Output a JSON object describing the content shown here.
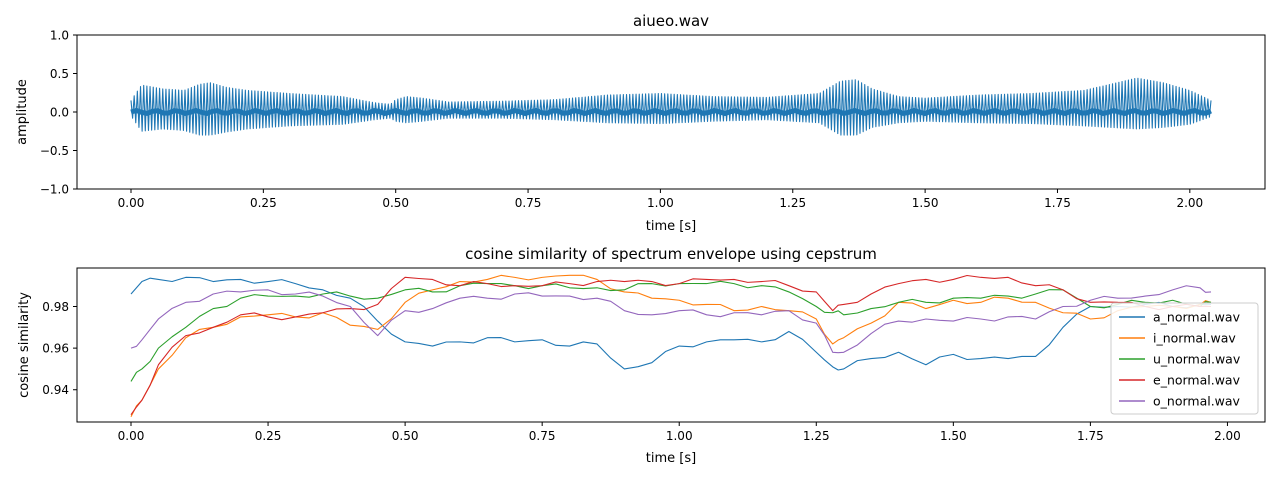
{
  "chart_data": [
    {
      "type": "line",
      "title": "aiueo.wav",
      "xlabel": "time [s]",
      "ylabel": "amplitude",
      "xlim": [
        -0.102,
        2.142
      ],
      "ylim": [
        -1.0,
        1.0
      ],
      "xticks": [
        0.0,
        0.25,
        0.5,
        0.75,
        1.0,
        1.25,
        1.5,
        1.75,
        2.0
      ],
      "xtick_labels": [
        "0.00",
        "0.25",
        "0.50",
        "0.75",
        "1.00",
        "1.25",
        "1.50",
        "1.75",
        "2.00"
      ],
      "yticks": [
        -1.0,
        -0.5,
        0.0,
        0.5,
        1.0
      ],
      "ytick_labels": [
        "−1.0",
        "−0.5",
        "0.0",
        "0.5",
        "1.0"
      ],
      "grid": false,
      "series": [
        {
          "color": "#1f77b4",
          "x_range": [
            0.0,
            2.04
          ],
          "envelope": {
            "t": [
              0.0,
              0.02,
              0.06,
              0.1,
              0.13,
              0.15,
              0.18,
              0.22,
              0.3,
              0.4,
              0.46,
              0.49,
              0.5,
              0.52,
              0.55,
              0.6,
              0.7,
              0.8,
              0.9,
              1.0,
              1.1,
              1.2,
              1.3,
              1.34,
              1.37,
              1.4,
              1.45,
              1.5,
              1.6,
              1.7,
              1.8,
              1.85,
              1.9,
              1.95,
              2.0,
              2.04
            ],
            "upper": [
              0.15,
              0.35,
              0.3,
              0.28,
              0.36,
              0.38,
              0.32,
              0.28,
              0.24,
              0.2,
              0.12,
              0.1,
              0.16,
              0.2,
              0.18,
              0.13,
              0.14,
              0.16,
              0.22,
              0.24,
              0.2,
              0.19,
              0.24,
              0.4,
              0.42,
              0.3,
              0.2,
              0.18,
              0.22,
              0.24,
              0.28,
              0.36,
              0.44,
              0.38,
              0.28,
              0.15
            ],
            "lower": [
              -0.05,
              -0.25,
              -0.22,
              -0.24,
              -0.3,
              -0.3,
              -0.26,
              -0.22,
              -0.18,
              -0.16,
              -0.1,
              -0.08,
              -0.12,
              -0.14,
              -0.12,
              -0.08,
              -0.08,
              -0.1,
              -0.14,
              -0.15,
              -0.12,
              -0.1,
              -0.14,
              -0.3,
              -0.3,
              -0.2,
              -0.14,
              -0.12,
              -0.14,
              -0.15,
              -0.18,
              -0.2,
              -0.22,
              -0.2,
              -0.16,
              -0.06
            ]
          }
        }
      ]
    },
    {
      "type": "line",
      "title": "cosine similarity of spectrum envelope using cepstrum",
      "xlabel": "time [s]",
      "ylabel": "cosine similarity",
      "xlim": [
        -0.0985,
        2.0685
      ],
      "ylim": [
        0.9245,
        0.9985
      ],
      "xticks": [
        0.0,
        0.25,
        0.5,
        0.75,
        1.0,
        1.25,
        1.5,
        1.75,
        2.0
      ],
      "xtick_labels": [
        "0.00",
        "0.25",
        "0.50",
        "0.75",
        "1.00",
        "1.25",
        "1.50",
        "1.75",
        "2.00"
      ],
      "yticks": [
        0.94,
        0.96,
        0.98
      ],
      "ytick_labels": [
        "0.94",
        "0.96",
        "0.98"
      ],
      "grid": false,
      "legend_position": "lower right",
      "x": [
        0.0,
        0.02,
        0.05,
        0.1,
        0.15,
        0.2,
        0.25,
        0.3,
        0.35,
        0.4,
        0.45,
        0.5,
        0.55,
        0.6,
        0.65,
        0.7,
        0.75,
        0.8,
        0.85,
        0.9,
        0.95,
        1.0,
        1.05,
        1.1,
        1.15,
        1.2,
        1.25,
        1.28,
        1.3,
        1.35,
        1.4,
        1.45,
        1.5,
        1.55,
        1.6,
        1.65,
        1.7,
        1.75,
        1.8,
        1.85,
        1.9,
        1.95,
        1.97
      ],
      "series": [
        {
          "name": "a_normal.wav",
          "color": "#1f77b4",
          "values": [
            0.986,
            0.992,
            0.993,
            0.994,
            0.992,
            0.993,
            0.992,
            0.991,
            0.988,
            0.984,
            0.973,
            0.963,
            0.961,
            0.963,
            0.965,
            0.963,
            0.964,
            0.961,
            0.962,
            0.95,
            0.953,
            0.961,
            0.963,
            0.964,
            0.963,
            0.968,
            0.958,
            0.951,
            0.95,
            0.955,
            0.958,
            0.952,
            0.957,
            0.955,
            0.955,
            0.956,
            0.97,
            0.98,
            0.98,
            0.981,
            0.98,
            0.981,
            0.981
          ]
        },
        {
          "name": "i_normal.wav",
          "color": "#ff7f0e",
          "values": [
            0.927,
            0.935,
            0.95,
            0.965,
            0.97,
            0.975,
            0.976,
            0.975,
            0.977,
            0.971,
            0.969,
            0.982,
            0.988,
            0.992,
            0.993,
            0.994,
            0.994,
            0.995,
            0.993,
            0.987,
            0.984,
            0.983,
            0.981,
            0.978,
            0.98,
            0.978,
            0.974,
            0.962,
            0.965,
            0.972,
            0.982,
            0.979,
            0.983,
            0.982,
            0.984,
            0.982,
            0.977,
            0.974,
            0.978,
            0.98,
            0.98,
            0.981,
            0.982
          ]
        },
        {
          "name": "u_normal.wav",
          "color": "#2ca02c",
          "values": [
            0.944,
            0.95,
            0.96,
            0.97,
            0.979,
            0.984,
            0.985,
            0.985,
            0.986,
            0.985,
            0.984,
            0.988,
            0.987,
            0.99,
            0.991,
            0.99,
            0.99,
            0.989,
            0.989,
            0.988,
            0.991,
            0.991,
            0.991,
            0.991,
            0.99,
            0.987,
            0.98,
            0.977,
            0.976,
            0.979,
            0.982,
            0.982,
            0.984,
            0.984,
            0.985,
            0.986,
            0.988,
            0.98,
            0.981,
            0.982,
            0.983,
            0.98,
            0.982
          ]
        },
        {
          "name": "e_normal.wav",
          "color": "#d62728",
          "values": [
            0.928,
            0.935,
            0.952,
            0.966,
            0.97,
            0.976,
            0.975,
            0.975,
            0.977,
            0.979,
            0.981,
            0.994,
            0.993,
            0.99,
            0.991,
            0.99,
            0.99,
            0.991,
            0.992,
            0.992,
            0.992,
            0.991,
            0.993,
            0.993,
            0.992,
            0.99,
            0.987,
            0.978,
            0.981,
            0.986,
            0.991,
            0.993,
            0.993,
            0.994,
            0.994,
            0.99,
            0.988,
            0.982,
            0.982,
            0.98,
            0.98,
            0.98,
            0.98
          ]
        },
        {
          "name": "o_normal.wav",
          "color": "#9467bd",
          "values": [
            0.96,
            0.964,
            0.974,
            0.982,
            0.986,
            0.987,
            0.988,
            0.986,
            0.985,
            0.98,
            0.966,
            0.978,
            0.979,
            0.984,
            0.984,
            0.986,
            0.985,
            0.985,
            0.984,
            0.978,
            0.976,
            0.978,
            0.976,
            0.977,
            0.976,
            0.978,
            0.972,
            0.958,
            0.958,
            0.967,
            0.973,
            0.974,
            0.973,
            0.974,
            0.975,
            0.974,
            0.98,
            0.983,
            0.984,
            0.985,
            0.988,
            0.989,
            0.987
          ]
        }
      ]
    }
  ]
}
